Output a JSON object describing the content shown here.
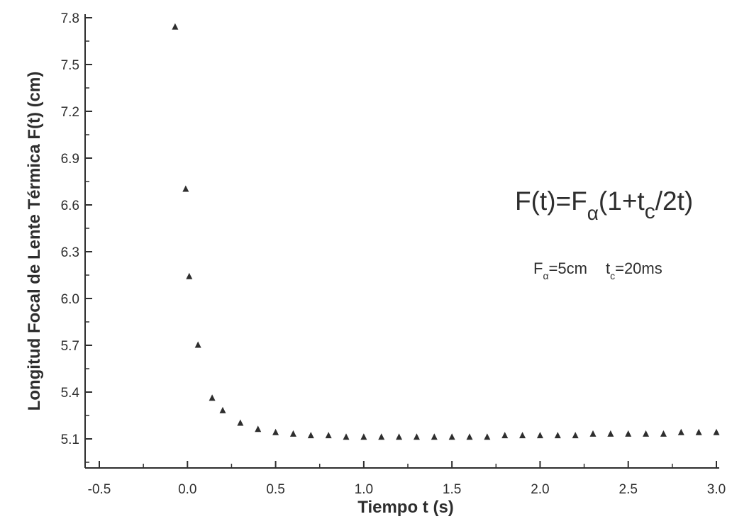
{
  "chart_data": {
    "type": "scatter",
    "xlabel": "Tiempo  t (s)",
    "ylabel": "Longitud  Focal de Lente Térmica F(t) (cm)",
    "xlim": [
      -0.5,
      3.0
    ],
    "ylim": [
      4.9,
      7.8
    ],
    "x_ticks": [
      "-0.5",
      "0.0",
      "0.5",
      "1.0",
      "1.5",
      "2.0",
      "2.5",
      "3.0"
    ],
    "x_tick_values": [
      -0.5,
      0.0,
      0.5,
      1.0,
      1.5,
      2.0,
      2.5,
      3.0
    ],
    "y_ticks": [
      "5.1",
      "5.4",
      "5.7",
      "6.0",
      "6.3",
      "6.6",
      "6.9",
      "7.2",
      "7.5",
      "7.8"
    ],
    "y_tick_values": [
      5.1,
      5.4,
      5.7,
      6.0,
      6.3,
      6.6,
      6.9,
      7.2,
      7.5,
      7.8
    ],
    "marker": "triangle",
    "marker_color": "#2e2e2e",
    "grid": false,
    "annotations": {
      "formula": {
        "main": "F(t)=F",
        "sub1": "α",
        "paren_open": "(1+t",
        "sub2": "c",
        "tail": "/2t)"
      },
      "params": {
        "f_label": "F",
        "f_sub": "α",
        "f_value": "=5cm",
        "t_label": "t",
        "t_sub": "c",
        "t_value": "=20ms"
      }
    },
    "x": [
      -0.07,
      -0.01,
      0.01,
      0.06,
      0.14,
      0.2,
      0.3,
      0.4,
      0.5,
      0.6,
      0.7,
      0.8,
      0.9,
      1.0,
      1.1,
      1.2,
      1.3,
      1.4,
      1.5,
      1.6,
      1.7,
      1.8,
      1.9,
      2.0,
      2.1,
      2.2,
      2.3,
      2.4,
      2.5,
      2.6,
      2.7,
      2.8,
      2.9,
      3.0
    ],
    "y": [
      7.74,
      6.7,
      6.14,
      5.7,
      5.36,
      5.28,
      5.2,
      5.16,
      5.14,
      5.13,
      5.12,
      5.12,
      5.11,
      5.11,
      5.11,
      5.11,
      5.11,
      5.11,
      5.11,
      5.11,
      5.11,
      5.12,
      5.12,
      5.12,
      5.12,
      5.12,
      5.13,
      5.13,
      5.13,
      5.13,
      5.13,
      5.14,
      5.14,
      5.14
    ]
  }
}
